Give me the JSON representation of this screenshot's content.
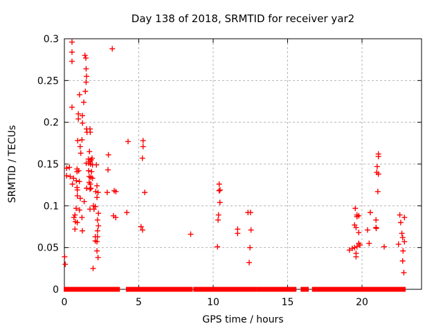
{
  "chart_data": {
    "type": "scatter",
    "title": "Day 138 of 2018, SRMTID for receiver yar2",
    "xlabel": "GPS time / hours",
    "ylabel": "SRMTID / TECUs",
    "xlim": [
      0,
      24
    ],
    "ylim": [
      0,
      0.3
    ],
    "xticks": [
      "0",
      "5",
      "10",
      "15",
      "20"
    ],
    "yticks": [
      "0",
      "0.05",
      "0.1",
      "0.15",
      "0.2",
      "0.25",
      "0.3"
    ],
    "grid": true,
    "legend": "none",
    "marker": "plus",
    "marker_color": "#ff0000",
    "grid_color": "#b3b3b3",
    "frame_color": "#000000",
    "points": [
      [
        0.02,
        0.039
      ],
      [
        0.06,
        0.03
      ],
      [
        0.15,
        0.145
      ],
      [
        0.15,
        0.136
      ],
      [
        0.34,
        0.146
      ],
      [
        0.39,
        0.135
      ],
      [
        0.51,
        0.296
      ],
      [
        0.51,
        0.284
      ],
      [
        0.51,
        0.273
      ],
      [
        0.51,
        0.218
      ],
      [
        0.54,
        0.126
      ],
      [
        0.62,
        0.133
      ],
      [
        0.64,
        0.086
      ],
      [
        0.71,
        0.089
      ],
      [
        0.71,
        0.072
      ],
      [
        0.74,
        0.081
      ],
      [
        0.79,
        0.097
      ],
      [
        0.8,
        0.13
      ],
      [
        0.85,
        0.144
      ],
      [
        0.85,
        0.141
      ],
      [
        0.85,
        0.122
      ],
      [
        0.87,
        0.119
      ],
      [
        0.87,
        0.112
      ],
      [
        0.87,
        0.08
      ],
      [
        0.9,
        0.178
      ],
      [
        0.94,
        0.21
      ],
      [
        0.94,
        0.204
      ],
      [
        0.96,
        0.142
      ],
      [
        1.01,
        0.129
      ],
      [
        1.02,
        0.233
      ],
      [
        1.02,
        0.095
      ],
      [
        1.06,
        0.171
      ],
      [
        1.07,
        0.109
      ],
      [
        1.1,
        0.163
      ],
      [
        1.18,
        0.179
      ],
      [
        1.18,
        0.086
      ],
      [
        1.21,
        0.208
      ],
      [
        1.21,
        0.07
      ],
      [
        1.22,
        0.199
      ],
      [
        1.3,
        0.224
      ],
      [
        1.33,
        0.105
      ],
      [
        1.38,
        0.28
      ],
      [
        1.41,
        0.237
      ],
      [
        1.44,
        0.277
      ],
      [
        1.46,
        0.264
      ],
      [
        1.46,
        0.248
      ],
      [
        1.47,
        0.151
      ],
      [
        1.49,
        0.255
      ],
      [
        1.49,
        0.192
      ],
      [
        1.49,
        0.121
      ],
      [
        1.52,
        0.188
      ],
      [
        1.61,
        0.156
      ],
      [
        1.63,
        0.151
      ],
      [
        1.63,
        0.142
      ],
      [
        1.67,
        0.135
      ],
      [
        1.67,
        0.128
      ],
      [
        1.69,
        0.165
      ],
      [
        1.72,
        0.192
      ],
      [
        1.72,
        0.153
      ],
      [
        1.72,
        0.12
      ],
      [
        1.72,
        0.096
      ],
      [
        1.74,
        0.188
      ],
      [
        1.74,
        0.126
      ],
      [
        1.75,
        0.15
      ],
      [
        1.78,
        0.134
      ],
      [
        1.78,
        0.121
      ],
      [
        1.8,
        0.155
      ],
      [
        1.83,
        0.141
      ],
      [
        1.86,
        0.157
      ],
      [
        1.89,
        0.149
      ],
      [
        1.89,
        0.133
      ],
      [
        1.93,
        0.025
      ],
      [
        1.95,
        0.1
      ],
      [
        1.99,
        0.096
      ],
      [
        2.08,
        0.099
      ],
      [
        2.08,
        0.063
      ],
      [
        2.08,
        0.058
      ],
      [
        2.11,
        0.117
      ],
      [
        2.15,
        0.149
      ],
      [
        2.19,
        0.124
      ],
      [
        2.19,
        0.11
      ],
      [
        2.19,
        0.057
      ],
      [
        2.19,
        0.046
      ],
      [
        2.23,
        0.083
      ],
      [
        2.23,
        0.07
      ],
      [
        2.23,
        0.063
      ],
      [
        2.26,
        0.116
      ],
      [
        2.26,
        0.038
      ],
      [
        2.29,
        0.091
      ],
      [
        2.29,
        0.076
      ],
      [
        2.88,
        0.116
      ],
      [
        2.93,
        0.143
      ],
      [
        2.96,
        0.161
      ],
      [
        3.22,
        0.288
      ],
      [
        3.3,
        0.088
      ],
      [
        3.35,
        0.118
      ],
      [
        3.45,
        0.086
      ],
      [
        3.46,
        0.117
      ],
      [
        4.2,
        0.092
      ],
      [
        4.28,
        0.177
      ],
      [
        5.15,
        0.075
      ],
      [
        5.24,
        0.157
      ],
      [
        5.25,
        0.071
      ],
      [
        5.29,
        0.178
      ],
      [
        5.29,
        0.171
      ],
      [
        5.4,
        0.116
      ],
      [
        8.49,
        0.066
      ],
      [
        10.29,
        0.051
      ],
      [
        10.33,
        0.083
      ],
      [
        10.36,
        0.089
      ],
      [
        10.4,
        0.126
      ],
      [
        10.4,
        0.118
      ],
      [
        10.45,
        0.104
      ],
      [
        10.46,
        0.119
      ],
      [
        11.64,
        0.072
      ],
      [
        11.64,
        0.067
      ],
      [
        12.34,
        0.092
      ],
      [
        12.42,
        0.032
      ],
      [
        12.47,
        0.05
      ],
      [
        12.5,
        0.092
      ],
      [
        12.54,
        0.071
      ],
      [
        19.16,
        0.047
      ],
      [
        19.35,
        0.049
      ],
      [
        19.5,
        0.077
      ],
      [
        19.5,
        0.05
      ],
      [
        19.55,
        0.097
      ],
      [
        19.6,
        0.074
      ],
      [
        19.6,
        0.043
      ],
      [
        19.6,
        0.039
      ],
      [
        19.66,
        0.089
      ],
      [
        19.66,
        0.087
      ],
      [
        19.66,
        0.051
      ],
      [
        19.78,
        0.088
      ],
      [
        19.78,
        0.068
      ],
      [
        19.78,
        0.055
      ],
      [
        19.86,
        0.053
      ],
      [
        20.37,
        0.071
      ],
      [
        20.48,
        0.055
      ],
      [
        20.56,
        0.092
      ],
      [
        20.94,
        0.083
      ],
      [
        20.94,
        0.074
      ],
      [
        20.96,
        0.073
      ],
      [
        20.99,
        0.14
      ],
      [
        21.02,
        0.147
      ],
      [
        21.06,
        0.117
      ],
      [
        21.1,
        0.162
      ],
      [
        21.1,
        0.159
      ],
      [
        21.1,
        0.138
      ],
      [
        21.49,
        0.051
      ],
      [
        22.45,
        0.054
      ],
      [
        22.54,
        0.089
      ],
      [
        22.6,
        0.08
      ],
      [
        22.68,
        0.067
      ],
      [
        22.73,
        0.062
      ],
      [
        22.73,
        0.034
      ],
      [
        22.76,
        0.046
      ],
      [
        22.81,
        0.02
      ],
      [
        22.85,
        0.086
      ],
      [
        22.85,
        0.057
      ]
    ],
    "zero_band_segments": [
      [
        0.05,
        0.31
      ],
      [
        0.45,
        0.67
      ],
      [
        0.82,
        1.55
      ],
      [
        1.6,
        2.17
      ],
      [
        2.25,
        2.94
      ],
      [
        2.99,
        3.64
      ],
      [
        4.23,
        6.43
      ],
      [
        6.54,
        7.6
      ],
      [
        7.67,
        7.91
      ],
      [
        8.0,
        8.53
      ],
      [
        8.76,
        8.87
      ],
      [
        8.99,
        9.09
      ],
      [
        9.15,
        12.79
      ],
      [
        12.98,
        13.26
      ],
      [
        13.33,
        14.26
      ],
      [
        14.42,
        14.96
      ],
      [
        15.12,
        15.5
      ],
      [
        15.97,
        16.13
      ],
      [
        16.28,
        16.33
      ],
      [
        16.73,
        16.84
      ],
      [
        16.95,
        17.04
      ],
      [
        17.1,
        17.85
      ],
      [
        17.92,
        18.08
      ],
      [
        18.23,
        18.39
      ],
      [
        18.47,
        19.16
      ],
      [
        19.24,
        19.86
      ],
      [
        19.95,
        20.33
      ],
      [
        20.48,
        22.73
      ],
      [
        22.78,
        22.84
      ]
    ]
  }
}
